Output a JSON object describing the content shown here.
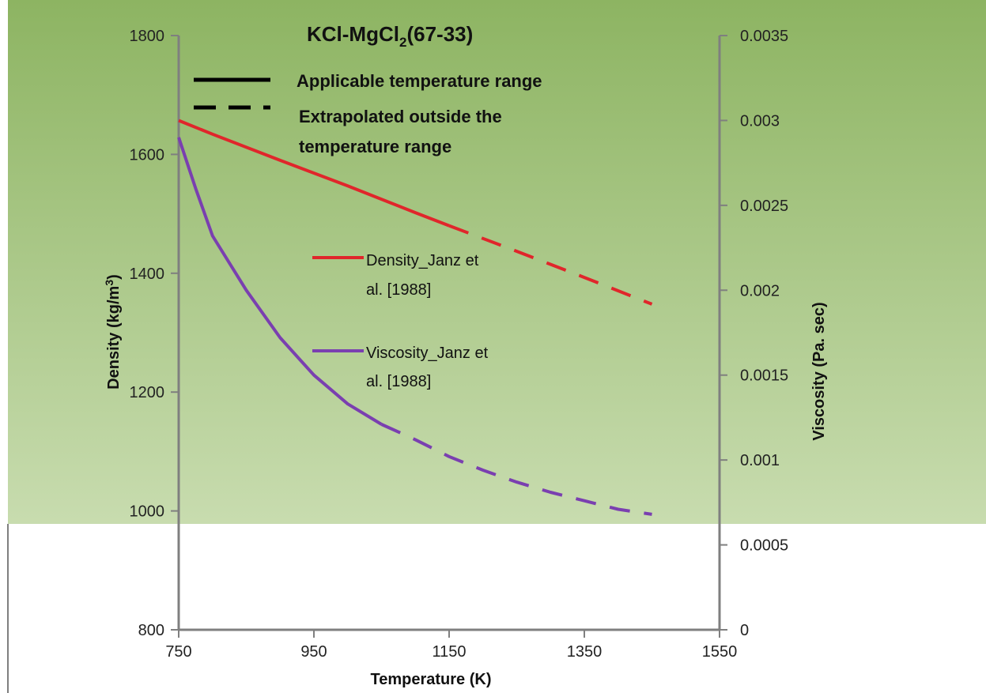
{
  "chart_data": {
    "type": "line",
    "title": "KCl-MgCl",
    "title_sub": "2",
    "title_suffix": "(67-33)",
    "xlabel": "Temperature (K)",
    "ylabel": "Density (kg/m",
    "ylabel_sup": "3",
    "ylabel_suffix": ")",
    "y2label": "Viscosity (Pa. sec)",
    "xlim": [
      750,
      1550
    ],
    "ylim": [
      800,
      1800
    ],
    "y2lim": [
      0,
      0.0035
    ],
    "x_ticks": [
      "750",
      "950",
      "1150",
      "1350",
      "1550"
    ],
    "x_tick_values": [
      750,
      950,
      1150,
      1350,
      1550
    ],
    "y_ticks": [
      "800",
      "1000",
      "1200",
      "1400",
      "1600",
      "1800"
    ],
    "y_tick_values": [
      800,
      1000,
      1200,
      1400,
      1600,
      1800
    ],
    "y2_ticks": [
      "0",
      "0.0005",
      "0.001",
      "0.0015",
      "0.002",
      "0.0025",
      "0.003",
      "0.0035"
    ],
    "y2_tick_values": [
      0,
      0.0005,
      0.001,
      0.0015,
      0.002,
      0.0025,
      0.003,
      0.0035
    ],
    "legend_styles": [
      {
        "style": "solid",
        "label": "Applicable temperature range"
      },
      {
        "style": "dashed",
        "label_line1": "Extrapolated outside the",
        "label_line2": "temperature range"
      }
    ],
    "series": [
      {
        "name_line1": "Density_Janz et",
        "name_line2": "al. [1988]",
        "axis": "left",
        "color": "#e0262b",
        "solid": {
          "x": [
            750,
            800,
            900,
            1000,
            1100,
            1150
          ],
          "y": [
            1657,
            1634,
            1590,
            1547,
            1502,
            1480
          ]
        },
        "dashed": {
          "x": [
            1150,
            1250,
            1350,
            1450
          ],
          "y": [
            1480,
            1437,
            1393,
            1348
          ]
        }
      },
      {
        "name_line1": "Viscosity_Janz et",
        "name_line2": "al. [1988]",
        "axis": "right",
        "color": "#7a3fb0",
        "solid": {
          "x": [
            750,
            775,
            800,
            850,
            900,
            950,
            1000,
            1050
          ],
          "y": [
            0.0029,
            0.0026,
            0.00232,
            0.002,
            0.00172,
            0.0015,
            0.00133,
            0.00121
          ]
        },
        "dashed": {
          "x": [
            1050,
            1100,
            1150,
            1200,
            1250,
            1300,
            1350,
            1400,
            1450
          ],
          "y": [
            0.00121,
            0.00112,
            0.00102,
            0.00094,
            0.00087,
            0.00081,
            0.00076,
            0.00071,
            0.00068
          ]
        }
      }
    ],
    "colors": {
      "plot_background_top": "#8db462",
      "plot_background_bottom": "#c8dcaf",
      "axis": "#7f7f7f"
    }
  }
}
